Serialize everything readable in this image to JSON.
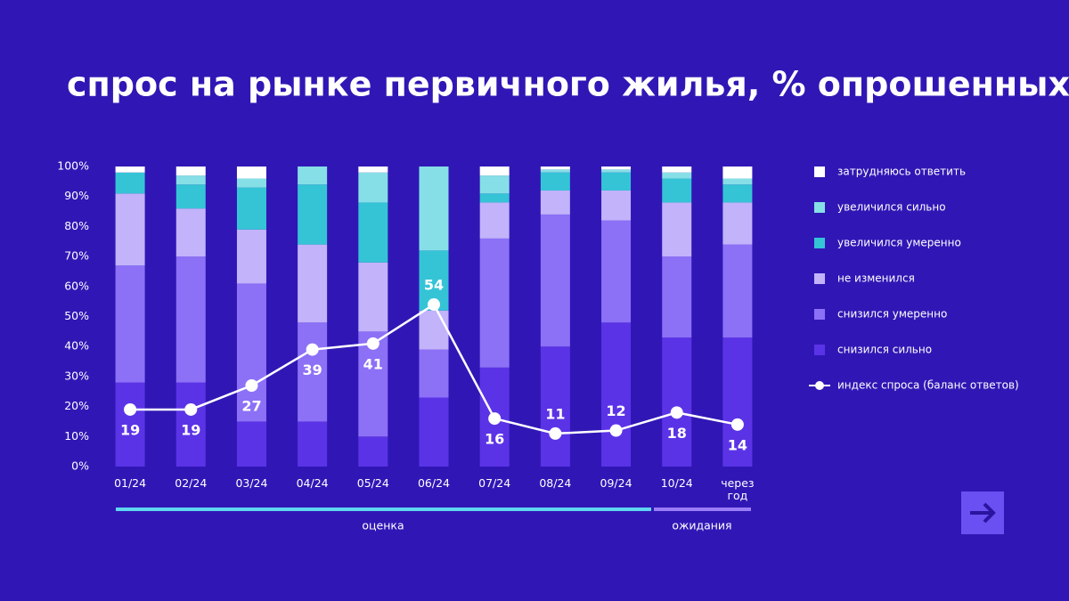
{
  "chart_data": {
    "type": "stacked-bar-line",
    "title": "спрос на рынке первичного жилья, % опрошенных",
    "categories": [
      "01/24",
      "02/24",
      "03/24",
      "04/24",
      "05/24",
      "06/24",
      "07/24",
      "08/24",
      "09/24",
      "10/24",
      "через год"
    ],
    "series": [
      {
        "name": "снизился сильно",
        "color": "#5b33e6",
        "values": [
          28,
          28,
          15,
          15,
          10,
          23,
          33,
          40,
          48,
          43,
          43
        ]
      },
      {
        "name": "снизился умеренно",
        "color": "#8c70f6",
        "values": [
          39,
          42,
          46,
          33,
          35,
          16,
          43,
          44,
          34,
          27,
          31
        ]
      },
      {
        "name": "не изменился",
        "color": "#c2b3fb",
        "values": [
          24,
          16,
          18,
          26,
          23,
          13,
          12,
          8,
          10,
          18,
          14
        ]
      },
      {
        "name": "увеличился умеренно",
        "color": "#35c4d6",
        "values": [
          7,
          8,
          14,
          20,
          20,
          20,
          3,
          6,
          6,
          8,
          6
        ]
      },
      {
        "name": "увеличился сильно",
        "color": "#86dfe6",
        "values": [
          0,
          3,
          3,
          6,
          10,
          28,
          6,
          1,
          1,
          2,
          2
        ]
      },
      {
        "name": "затрудняюсь ответить",
        "color": "#ffffff",
        "values": [
          2,
          3,
          4,
          0,
          2,
          0,
          3,
          1,
          1,
          2,
          4
        ]
      }
    ],
    "line": {
      "name": "индекс спроса (баланс ответов)",
      "color": "#ffffff",
      "values": [
        19,
        19,
        27,
        39,
        41,
        54,
        16,
        11,
        12,
        18,
        14
      ]
    },
    "ylim": [
      0,
      100
    ],
    "yticks": [
      {
        "value": 0,
        "label": "0%"
      },
      {
        "value": 10,
        "label": "10%"
      },
      {
        "value": 20,
        "label": "20%"
      },
      {
        "value": 30,
        "label": "30%"
      },
      {
        "value": 40,
        "label": "40%"
      },
      {
        "value": 50,
        "label": "50%"
      },
      {
        "value": 60,
        "label": "60%"
      },
      {
        "value": 70,
        "label": "70%"
      },
      {
        "value": 80,
        "label": "80%"
      },
      {
        "value": 90,
        "label": "90%"
      },
      {
        "value": 100,
        "label": "100%"
      }
    ],
    "annotations": [
      "оценка",
      "ожидания"
    ]
  }
}
